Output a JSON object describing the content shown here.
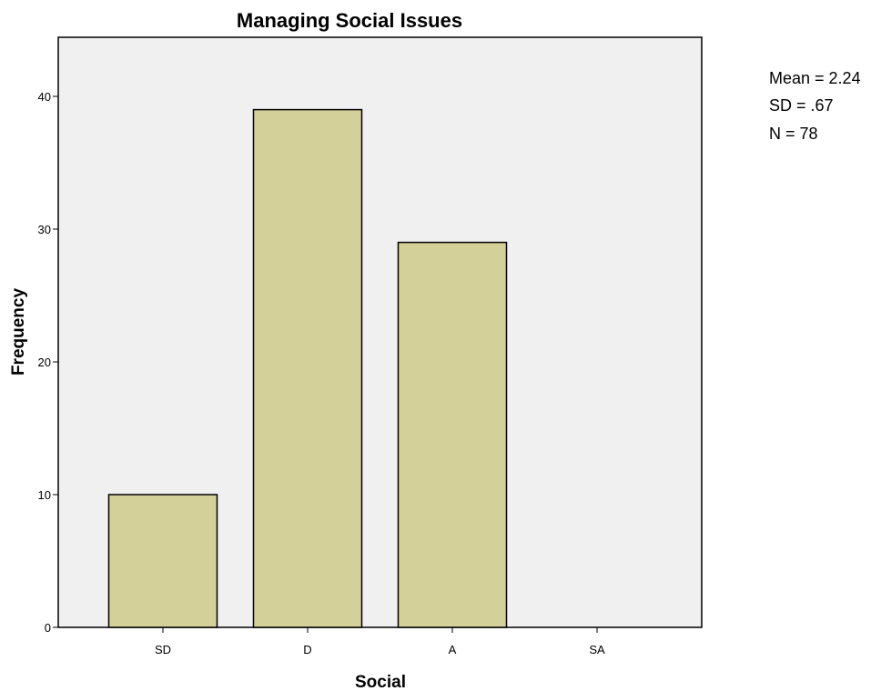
{
  "chart_data": {
    "type": "bar",
    "title": "Managing Social Issues",
    "xlabel": "Social",
    "ylabel": "Frequency",
    "categories": [
      "SD",
      "D",
      "A",
      "SA"
    ],
    "values": [
      10,
      39,
      29,
      0
    ],
    "ylim": [
      0,
      40
    ],
    "yticks": [
      0,
      10,
      20,
      30,
      40
    ],
    "grid": false,
    "legend": "none",
    "colors": {
      "bar_fill": "#d4d09a",
      "bar_stroke": "#000000",
      "plot_background": "#f0f0f0"
    },
    "stats": [
      "Mean = 2.24",
      "SD = .67",
      "N = 78"
    ]
  }
}
